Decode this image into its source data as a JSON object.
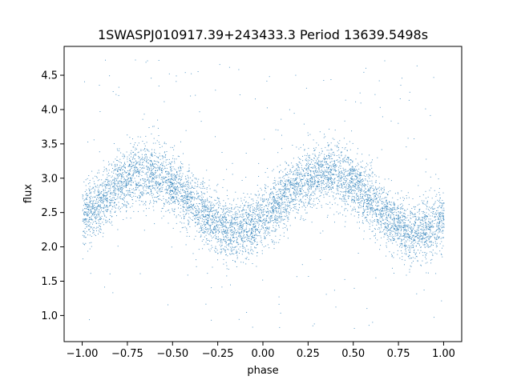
{
  "chart_data": {
    "type": "scatter",
    "title": "1SWASPJ010917.39+243433.3 Period 13639.5498s",
    "xlabel": "phase",
    "ylabel": "flux",
    "xlim": [
      -1.1,
      1.1
    ],
    "ylim": [
      0.62,
      4.92
    ],
    "x_ticks": [
      -1.0,
      -0.75,
      -0.5,
      -0.25,
      0.0,
      0.25,
      0.5,
      0.75,
      1.0
    ],
    "x_tick_labels": [
      "−1.00",
      "−0.75",
      "−0.50",
      "−0.25",
      "0.00",
      "0.25",
      "0.50",
      "0.75",
      "1.00"
    ],
    "y_ticks": [
      1.0,
      1.5,
      2.0,
      2.5,
      3.0,
      3.5,
      4.0,
      4.5
    ],
    "y_tick_labels": [
      "1.0",
      "1.5",
      "2.0",
      "2.5",
      "3.0",
      "3.5",
      "4.0",
      "4.5"
    ],
    "grid": false,
    "point_color": "#1f77b4",
    "series": [
      {
        "phase_range": [
          -1.0,
          1.0
        ],
        "mean_flux": 2.67,
        "amplitude": 0.42,
        "maxima_phase": [
          -0.65,
          0.35
        ],
        "minima_phase": [
          -0.15,
          0.85
        ],
        "max_flux": 3.1,
        "min_flux": 2.25,
        "scatter_sigma": 0.22,
        "outlier_range": [
          0.8,
          4.8
        ]
      }
    ]
  }
}
